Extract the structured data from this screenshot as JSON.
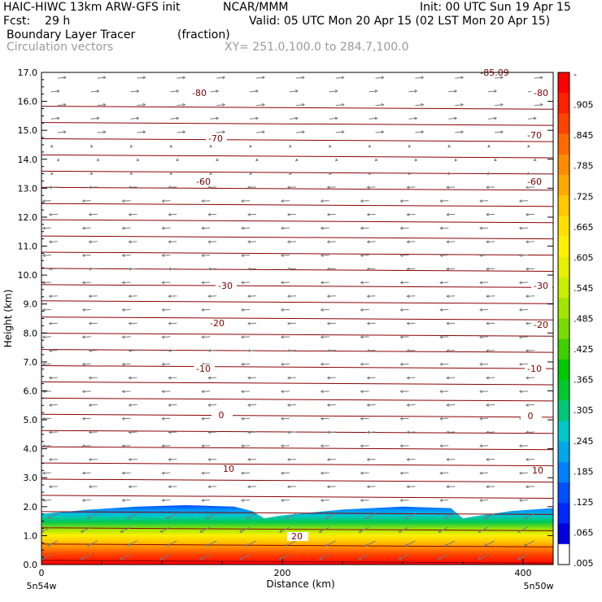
{
  "header": {
    "model": "HAIC-HIWC 13km ARW-GFS init",
    "org": "NCAR/MMM",
    "init": "Init: 00 UTC Sun 19 Apr 15",
    "fcst": "Fcst:    29 h",
    "valid": "Valid: 05 UTC Mon 20 Apr 15 (02 LST Mon 20 Apr 15)",
    "field": "Boundary Layer Tracer",
    "units": "(fraction)",
    "vectors": "Circulation vectors",
    "xsec": "XY= 251.0,100.0 to 284.7,100.0"
  },
  "chart_data": {
    "type": "heatmap",
    "xlabel": "Distance (km)",
    "ylabel": "Height (km)",
    "xlim": [
      0,
      425
    ],
    "ylim": [
      0,
      17
    ],
    "x_ticks": [
      "0",
      "200",
      "400"
    ],
    "x_tick_values": [
      0,
      200,
      400
    ],
    "x_end_labels": [
      "5n54w",
      "5n50w"
    ],
    "y_ticks": [
      "0.0",
      "1.0",
      "2.0",
      "3.0",
      "4.0",
      "5.0",
      "6.0",
      "7.0",
      "8.0",
      "9.0",
      "10.0",
      "11.0",
      "12.0",
      "13.0",
      "14.0",
      "15.0",
      "16.0",
      "17.0"
    ],
    "colorbar": {
      "labels": [
        "-",
        ".905",
        ".845",
        ".785",
        ".725",
        ".665",
        ".605",
        ".545",
        ".485",
        ".425",
        ".365",
        ".305",
        ".245",
        ".185",
        ".125",
        ".065",
        ".005"
      ],
      "colors": [
        "#ff0000",
        "#ff2000",
        "#ff4400",
        "#ff6a00",
        "#ff8c00",
        "#ffaa00",
        "#ffc800",
        "#ffe000",
        "#fff000",
        "#e6f000",
        "#c8ee00",
        "#a0e600",
        "#78dc00",
        "#40d000",
        "#00c800",
        "#00c830",
        "#00c878",
        "#00c8c8",
        "#00a8e8",
        "#0080ff",
        "#0050ff",
        "#0028ff",
        "#0000e0",
        "#ffffff"
      ]
    },
    "contour_labels": [
      "-80",
      "-70",
      "-60",
      "-30",
      "-20",
      "-10",
      "0",
      "10",
      "20"
    ],
    "top_labels": [
      "-85.09"
    ],
    "tracer_top_km": [
      [
        0,
        1.75
      ],
      [
        40,
        1.9
      ],
      [
        80,
        2.0
      ],
      [
        120,
        2.05
      ],
      [
        160,
        2.0
      ],
      [
        175,
        1.85
      ],
      [
        185,
        1.6
      ],
      [
        200,
        1.7
      ],
      [
        225,
        1.8
      ],
      [
        250,
        1.9
      ],
      [
        300,
        2.0
      ],
      [
        340,
        1.95
      ],
      [
        350,
        1.6
      ],
      [
        365,
        1.7
      ],
      [
        390,
        1.85
      ],
      [
        425,
        1.95
      ]
    ]
  }
}
